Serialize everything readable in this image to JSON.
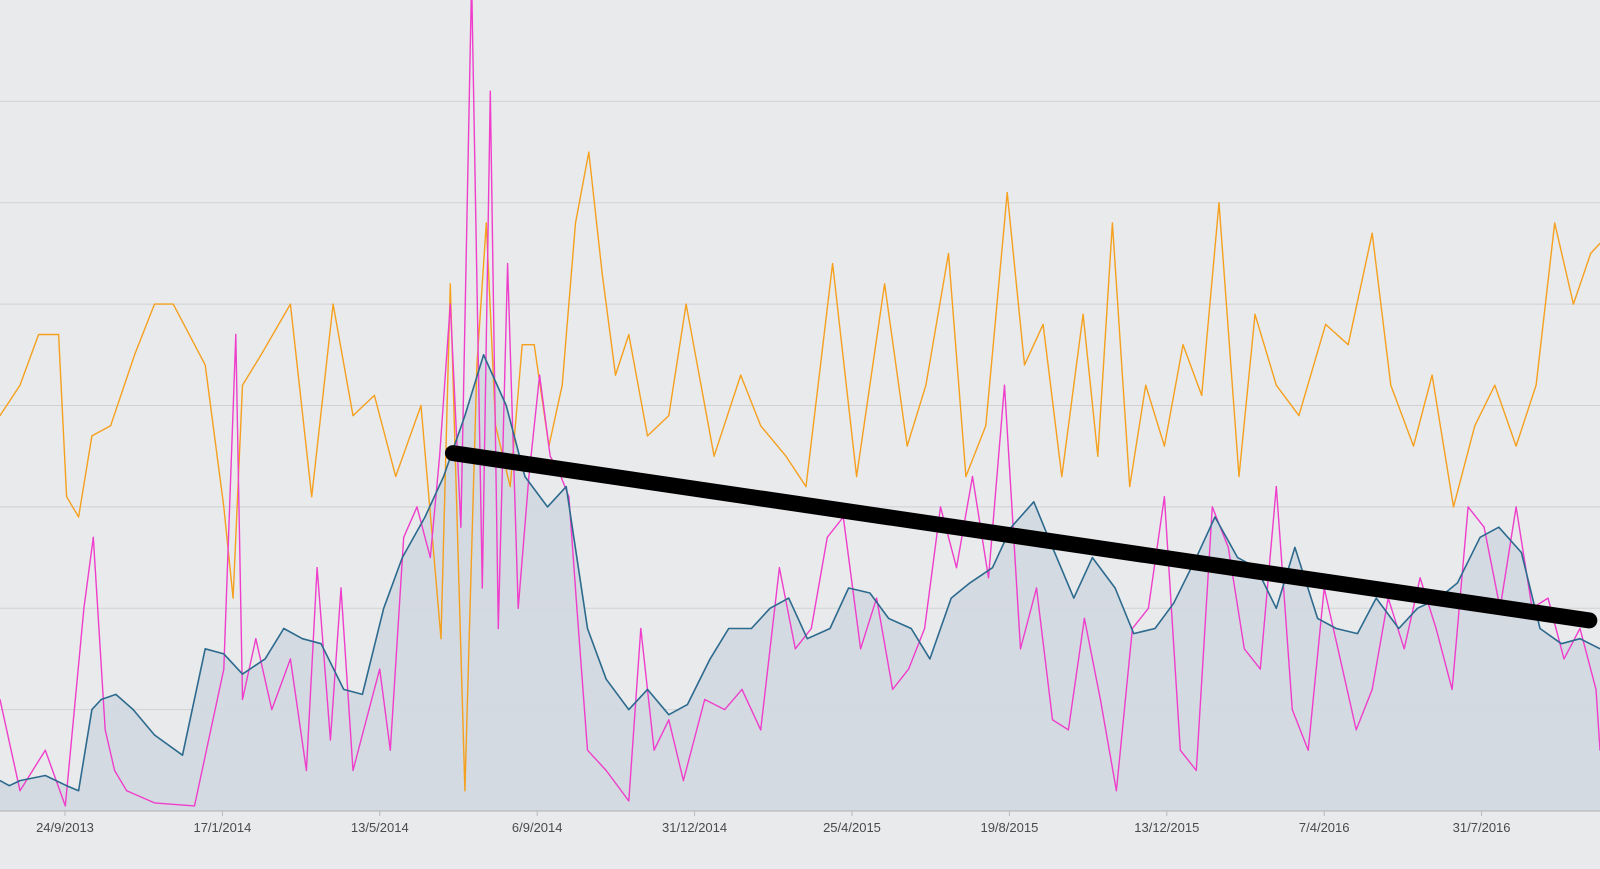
{
  "chart_data": {
    "type": "line",
    "title": "",
    "xlabel": "",
    "ylabel": "",
    "grid": true,
    "legend": "none",
    "x_start": "2013-07-17",
    "x_end": "2016-10-30",
    "x_tick_labels": [
      "24/9/2013",
      "17/1/2014",
      "13/5/2014",
      "6/9/2014",
      "31/12/2014",
      "25/4/2015",
      "19/8/2015",
      "13/12/2015",
      "7/4/2016",
      "31/7/2016"
    ],
    "ylim": [
      0,
      800
    ],
    "y_gridlines": [
      100,
      200,
      300,
      400,
      500,
      600,
      700
    ],
    "colors": {
      "form": "#f5a01e",
      "fatigue": "#ee3ecb",
      "fitness": "#2c6a8e",
      "fitness_fill": "#d1d8e0",
      "trend": "#000000"
    },
    "series": [
      {
        "name": "orange",
        "x": [
          "2013-07-17",
          "2013-08-01",
          "2013-08-15",
          "2013-08-30",
          "2013-09-05",
          "2013-09-14",
          "2013-09-24",
          "2013-10-08",
          "2013-10-26",
          "2013-11-10",
          "2013-11-24",
          "2013-12-18",
          "2014-01-01",
          "2014-01-08",
          "2014-01-15",
          "2014-01-29",
          "2014-02-20",
          "2014-03-08",
          "2014-03-24",
          "2014-04-08",
          "2014-04-24",
          "2014-05-10",
          "2014-05-29",
          "2014-06-13",
          "2014-06-20",
          "2014-07-01",
          "2014-07-10",
          "2014-07-17",
          "2014-07-24",
          "2014-08-04",
          "2014-08-13",
          "2014-08-22",
          "2014-09-02",
          "2014-09-12",
          "2014-09-22",
          "2014-10-02",
          "2014-10-12",
          "2014-10-22",
          "2014-11-01",
          "2014-11-15",
          "2014-12-01",
          "2014-12-14",
          "2015-01-04",
          "2015-01-24",
          "2015-02-08",
          "2015-02-27",
          "2015-03-14",
          "2015-04-03",
          "2015-04-21",
          "2015-05-12",
          "2015-05-29",
          "2015-06-12",
          "2015-06-29",
          "2015-07-12",
          "2015-07-27",
          "2015-08-12",
          "2015-08-25",
          "2015-09-08",
          "2015-09-22",
          "2015-10-08",
          "2015-10-19",
          "2015-10-30",
          "2015-11-12",
          "2015-11-24",
          "2015-12-08",
          "2015-12-22",
          "2016-01-05",
          "2016-01-18",
          "2016-02-02",
          "2016-02-14",
          "2016-03-01",
          "2016-03-18",
          "2016-04-07",
          "2016-04-24",
          "2016-05-12",
          "2016-05-26",
          "2016-06-12",
          "2016-06-26",
          "2016-07-12",
          "2016-07-28",
          "2016-08-12",
          "2016-08-28",
          "2016-09-12",
          "2016-09-26",
          "2016-10-10",
          "2016-10-23",
          "2016-10-30"
        ],
        "values": [
          390,
          420,
          470,
          470,
          310,
          290,
          370,
          380,
          450,
          500,
          500,
          440,
          300,
          210,
          420,
          450,
          500,
          310,
          500,
          390,
          410,
          330,
          400,
          170,
          520,
          20,
          440,
          580,
          380,
          320,
          460,
          460,
          360,
          420,
          580,
          650,
          530,
          430,
          470,
          370,
          390,
          500,
          350,
          430,
          380,
          350,
          320,
          540,
          330,
          520,
          360,
          420,
          550,
          330,
          380,
          610,
          440,
          480,
          330,
          490,
          350,
          580,
          320,
          420,
          360,
          460,
          410,
          600,
          330,
          490,
          420,
          390,
          480,
          460,
          570,
          420,
          360,
          430,
          300,
          380,
          420,
          360,
          420,
          580,
          500,
          550,
          560
        ]
      },
      {
        "name": "magenta",
        "x": [
          "2013-07-17",
          "2013-08-01",
          "2013-08-20",
          "2013-09-04",
          "2013-09-18",
          "2013-09-25",
          "2013-10-04",
          "2013-10-11",
          "2013-10-20",
          "2013-11-10",
          "2013-12-10",
          "2014-01-01",
          "2014-01-10",
          "2014-01-15",
          "2014-01-25",
          "2014-02-06",
          "2014-02-20",
          "2014-03-04",
          "2014-03-12",
          "2014-03-22",
          "2014-03-30",
          "2014-04-08",
          "2014-04-20",
          "2014-04-28",
          "2014-05-06",
          "2014-05-16",
          "2014-05-26",
          "2014-06-05",
          "2014-06-12",
          "2014-06-20",
          "2014-06-28",
          "2014-07-06",
          "2014-07-14",
          "2014-07-20",
          "2014-07-26",
          "2014-08-02",
          "2014-08-10",
          "2014-08-18",
          "2014-08-26",
          "2014-09-03",
          "2014-09-11",
          "2014-09-17",
          "2014-09-23",
          "2014-10-01",
          "2014-10-15",
          "2014-11-01",
          "2014-11-10",
          "2014-11-20",
          "2014-12-01",
          "2014-12-12",
          "2014-12-28",
          "2015-01-12",
          "2015-01-25",
          "2015-02-08",
          "2015-02-22",
          "2015-03-06",
          "2015-03-18",
          "2015-03-30",
          "2015-04-11",
          "2015-04-24",
          "2015-05-06",
          "2015-05-18",
          "2015-05-30",
          "2015-06-11",
          "2015-06-23",
          "2015-07-05",
          "2015-07-17",
          "2015-07-29",
          "2015-08-10",
          "2015-08-22",
          "2015-09-03",
          "2015-09-15",
          "2015-09-27",
          "2015-10-09",
          "2015-10-21",
          "2015-11-02",
          "2015-11-14",
          "2015-11-26",
          "2015-12-08",
          "2015-12-20",
          "2016-01-01",
          "2016-01-13",
          "2016-01-25",
          "2016-02-06",
          "2016-02-18",
          "2016-03-01",
          "2016-03-13",
          "2016-03-25",
          "2016-04-06",
          "2016-04-18",
          "2016-04-30",
          "2016-05-12",
          "2016-05-24",
          "2016-06-05",
          "2016-06-17",
          "2016-06-29",
          "2016-07-11",
          "2016-07-23",
          "2016-08-04",
          "2016-08-16",
          "2016-08-28",
          "2016-09-09",
          "2016-09-21",
          "2016-10-03",
          "2016-10-15",
          "2016-10-27",
          "2016-10-30"
        ],
        "values": [
          110,
          20,
          60,
          5,
          200,
          270,
          80,
          40,
          20,
          8,
          5,
          140,
          470,
          110,
          170,
          100,
          150,
          40,
          240,
          70,
          220,
          40,
          100,
          140,
          60,
          270,
          300,
          250,
          350,
          500,
          280,
          820,
          220,
          710,
          180,
          540,
          200,
          330,
          430,
          350,
          330,
          310,
          200,
          60,
          40,
          10,
          180,
          60,
          90,
          30,
          110,
          100,
          120,
          80,
          240,
          160,
          180,
          270,
          290,
          160,
          210,
          120,
          140,
          180,
          300,
          240,
          330,
          230,
          420,
          160,
          220,
          90,
          80,
          190,
          110,
          20,
          180,
          200,
          310,
          60,
          40,
          300,
          260,
          160,
          140,
          320,
          100,
          60,
          220,
          150,
          80,
          120,
          210,
          160,
          230,
          180,
          120,
          300,
          280,
          200,
          300,
          200,
          210,
          150,
          180,
          120,
          60
        ]
      },
      {
        "name": "blue",
        "x": [
          "2013-07-17",
          "2013-07-24",
          "2013-08-01",
          "2013-08-20",
          "2013-09-05",
          "2013-09-14",
          "2013-09-24",
          "2013-10-01",
          "2013-10-12",
          "2013-10-25",
          "2013-11-10",
          "2013-12-01",
          "2013-12-18",
          "2014-01-01",
          "2014-01-15",
          "2014-02-01",
          "2014-02-15",
          "2014-03-01",
          "2014-03-15",
          "2014-04-01",
          "2014-04-15",
          "2014-05-01",
          "2014-05-15",
          "2014-06-01",
          "2014-06-15",
          "2014-07-01",
          "2014-07-15",
          "2014-08-01",
          "2014-08-15",
          "2014-09-01",
          "2014-09-15",
          "2014-10-01",
          "2014-10-15",
          "2014-11-01",
          "2014-11-15",
          "2014-12-01",
          "2014-12-15",
          "2015-01-01",
          "2015-01-15",
          "2015-02-01",
          "2015-02-15",
          "2015-03-01",
          "2015-03-15",
          "2015-04-01",
          "2015-04-15",
          "2015-05-01",
          "2015-05-15",
          "2015-06-01",
          "2015-06-15",
          "2015-07-01",
          "2015-07-15",
          "2015-08-01",
          "2015-08-15",
          "2015-09-01",
          "2015-09-15",
          "2015-10-01",
          "2015-10-15",
          "2015-11-01",
          "2015-11-15",
          "2015-12-01",
          "2015-12-15",
          "2016-01-01",
          "2016-01-15",
          "2016-02-01",
          "2016-02-15",
          "2016-03-01",
          "2016-03-15",
          "2016-04-01",
          "2016-04-15",
          "2016-05-01",
          "2016-05-15",
          "2016-06-01",
          "2016-06-15",
          "2016-07-01",
          "2016-07-15",
          "2016-08-01",
          "2016-08-15",
          "2016-09-01",
          "2016-09-15",
          "2016-10-01",
          "2016-10-15",
          "2016-10-30"
        ],
        "values": [
          30,
          25,
          30,
          35,
          25,
          20,
          100,
          110,
          115,
          100,
          75,
          55,
          160,
          155,
          135,
          150,
          180,
          170,
          165,
          120,
          115,
          200,
          250,
          290,
          330,
          390,
          450,
          400,
          330,
          300,
          320,
          180,
          130,
          100,
          120,
          95,
          105,
          150,
          180,
          180,
          200,
          210,
          170,
          180,
          220,
          215,
          190,
          180,
          150,
          210,
          225,
          240,
          280,
          305,
          260,
          210,
          250,
          220,
          175,
          180,
          205,
          250,
          290,
          250,
          240,
          200,
          260,
          190,
          180,
          175,
          210,
          180,
          200,
          210,
          225,
          270,
          280,
          255,
          180,
          165,
          170,
          160
        ]
      }
    ],
    "trend_line": {
      "name": "black",
      "x": [
        "2014-06-22",
        "2016-10-22"
      ],
      "values": [
        353,
        188
      ]
    }
  }
}
